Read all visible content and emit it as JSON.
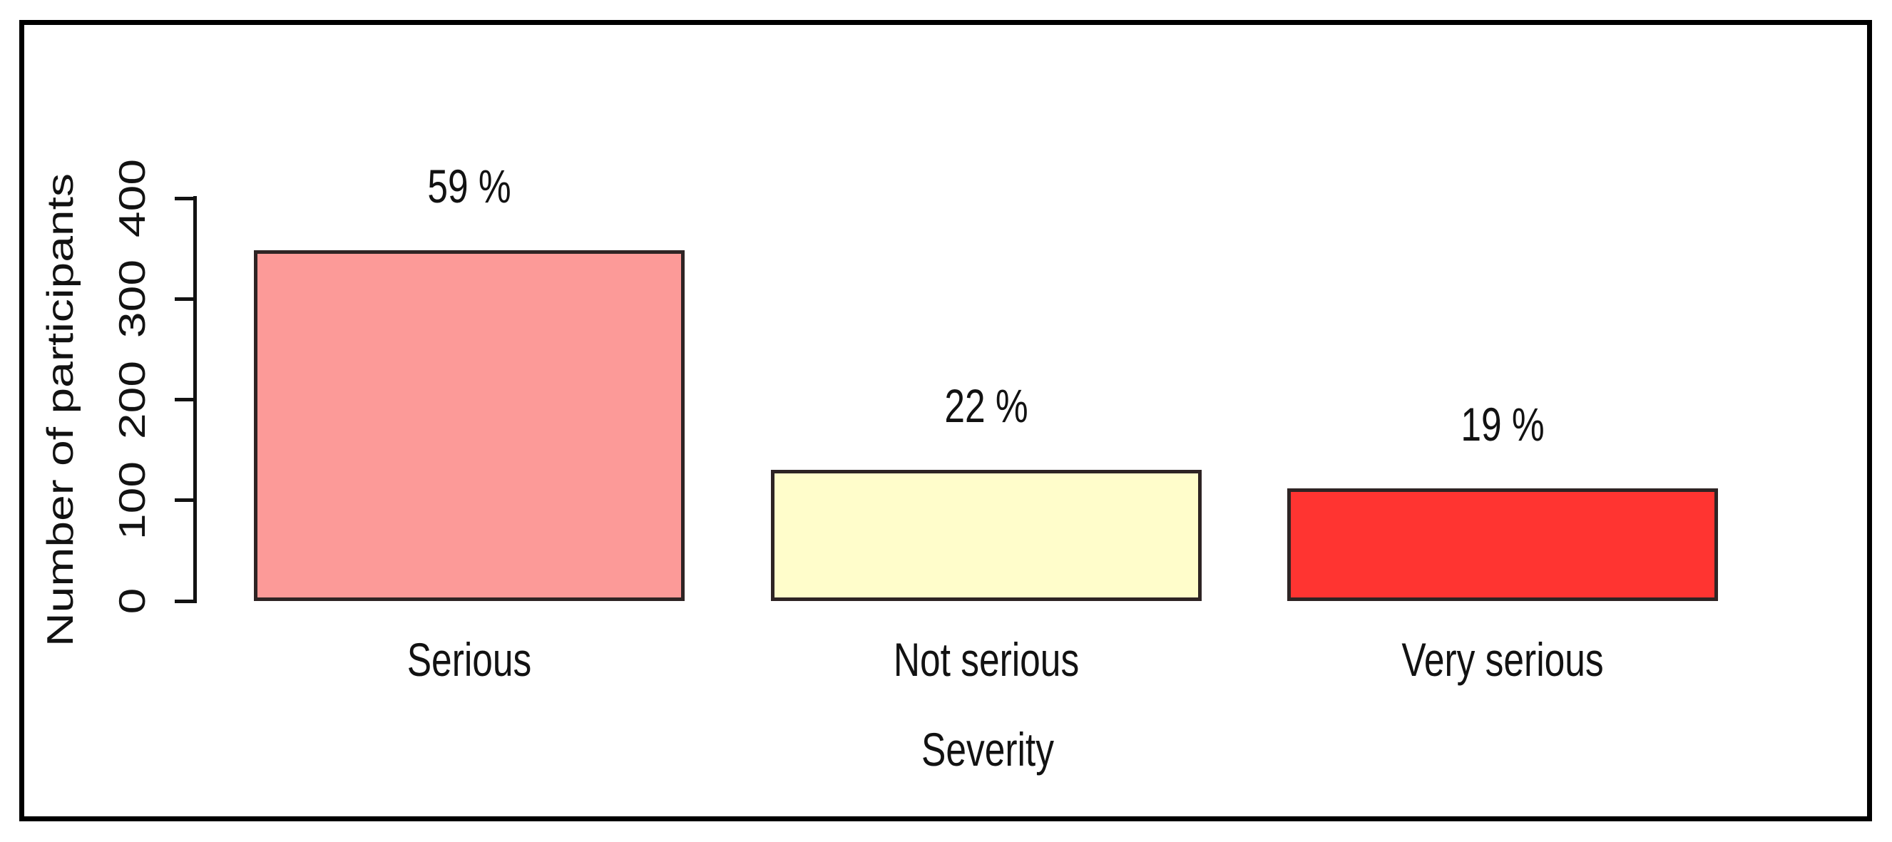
{
  "figure": {
    "background": "#ffffff",
    "frame_border_color": "#000000",
    "text_color": "#121212",
    "axis_color": "#121212"
  },
  "chart_data": {
    "type": "bar",
    "title": "",
    "xlabel": "Severity",
    "ylabel": "Number of participants",
    "categories": [
      "Serious",
      "Not serious",
      "Very serious"
    ],
    "values": [
      348,
      130,
      112
    ],
    "bar_labels": [
      "59 %",
      "22 %",
      "19 %"
    ],
    "bar_colors": [
      "#FC9A98",
      "#FFFDCB",
      "#FF3431"
    ],
    "bar_border_color": "#2e2424",
    "y_ticks": [
      0,
      100,
      200,
      300,
      400
    ],
    "ylim": [
      0,
      400
    ],
    "grid": false,
    "legend": "none"
  }
}
